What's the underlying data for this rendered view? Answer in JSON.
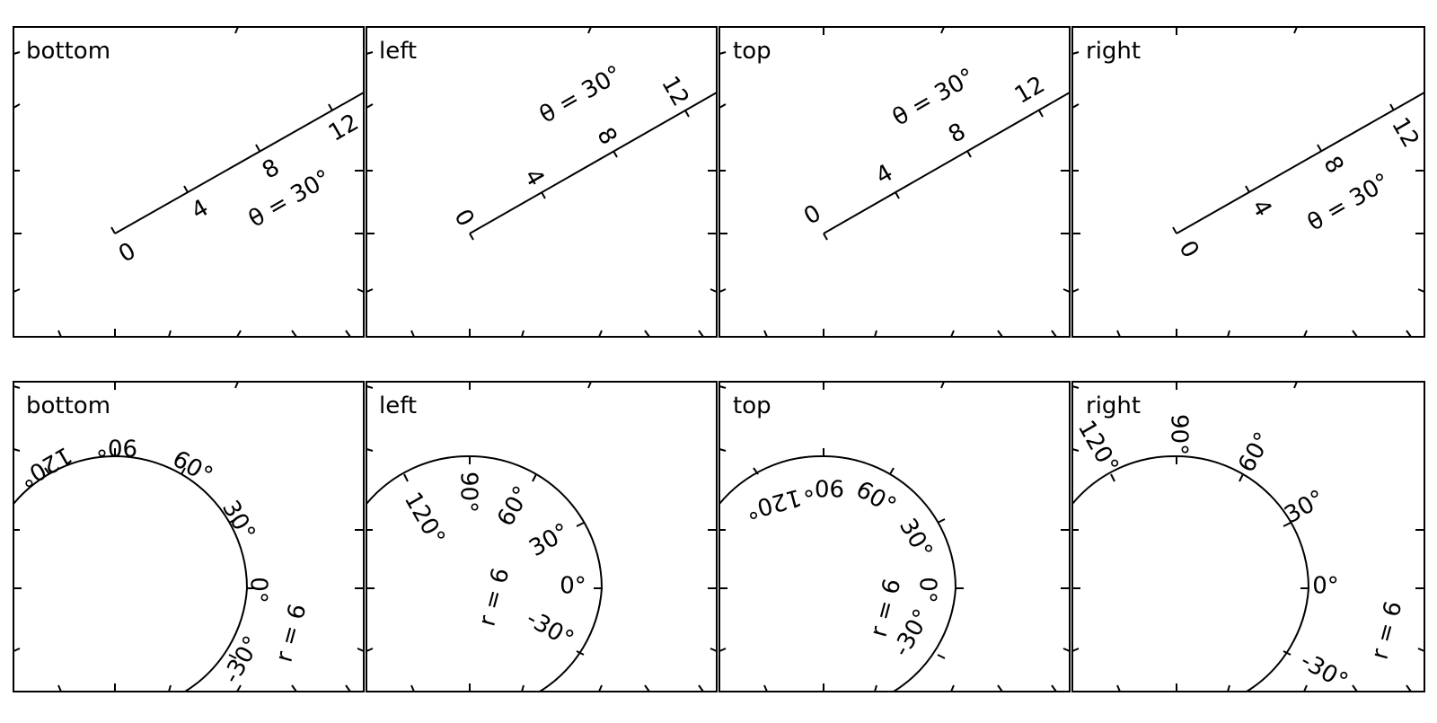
{
  "figure": {
    "top_row": [
      {
        "title": "bottom",
        "radial_ticks": [
          "0",
          "4",
          "8",
          "12"
        ],
        "axis_label": "θ = 30°"
      },
      {
        "title": "left",
        "radial_ticks": [
          "0",
          "4",
          "8",
          "12"
        ],
        "axis_label": "θ = 30°"
      },
      {
        "title": "top",
        "radial_ticks": [
          "0",
          "4",
          "8",
          "12"
        ],
        "axis_label": "θ = 30°"
      },
      {
        "title": "right",
        "radial_ticks": [
          "0",
          "4",
          "8",
          "12"
        ],
        "axis_label": "θ = 30°"
      }
    ],
    "bottom_row": [
      {
        "title": "bottom",
        "angle_ticks": [
          "-30°",
          "0°",
          "30°",
          "60°",
          "90°",
          "120°"
        ],
        "axis_label": "r = 6"
      },
      {
        "title": "left",
        "angle_ticks": [
          "-30°",
          "0°",
          "30°",
          "60°",
          "90°",
          "120°"
        ],
        "axis_label": "r = 6"
      },
      {
        "title": "top",
        "angle_ticks": [
          "-30°",
          "0°",
          "30°",
          "60°",
          "90°",
          "120°"
        ],
        "axis_label": "r = 6"
      },
      {
        "title": "right",
        "angle_ticks": [
          "-30°",
          "0°",
          "30°",
          "60°",
          "90°",
          "120°"
        ],
        "axis_label": "r = 6"
      }
    ]
  }
}
